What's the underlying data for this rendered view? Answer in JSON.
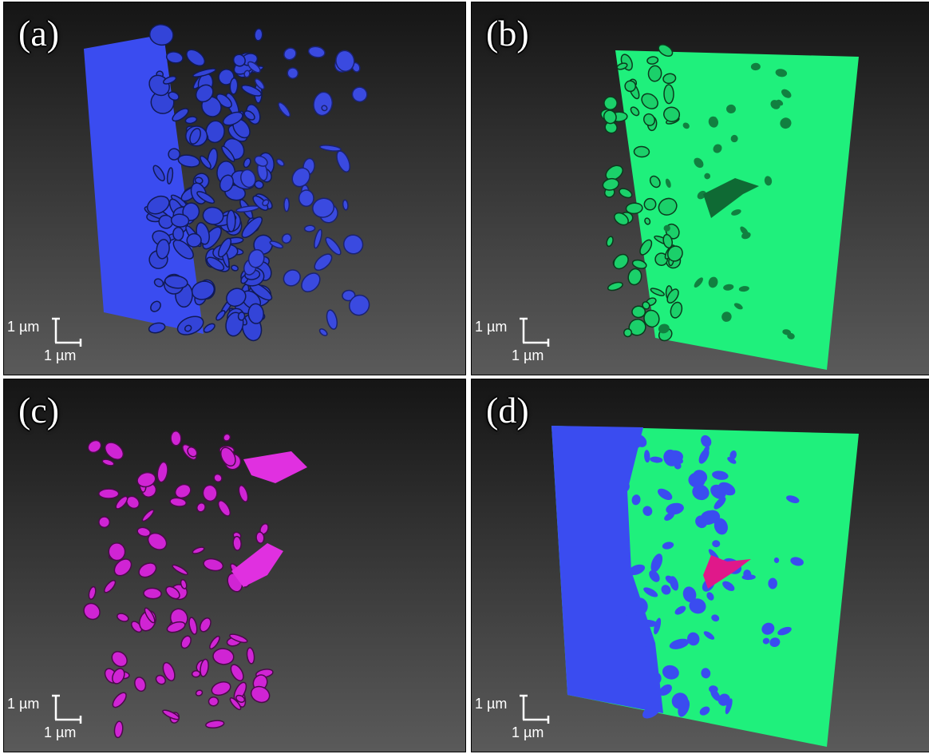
{
  "panels": [
    {
      "label": "(a)",
      "scale_y": "1 µm",
      "scale_x": "1 µm"
    },
    {
      "label": "(b)",
      "scale_y": "1 µm",
      "scale_x": "1 µm"
    },
    {
      "label": "(c)",
      "scale_y": "1 µm",
      "scale_x": "1 µm"
    },
    {
      "label": "(d)",
      "scale_y": "1 µm",
      "scale_x": "1 µm"
    }
  ]
}
